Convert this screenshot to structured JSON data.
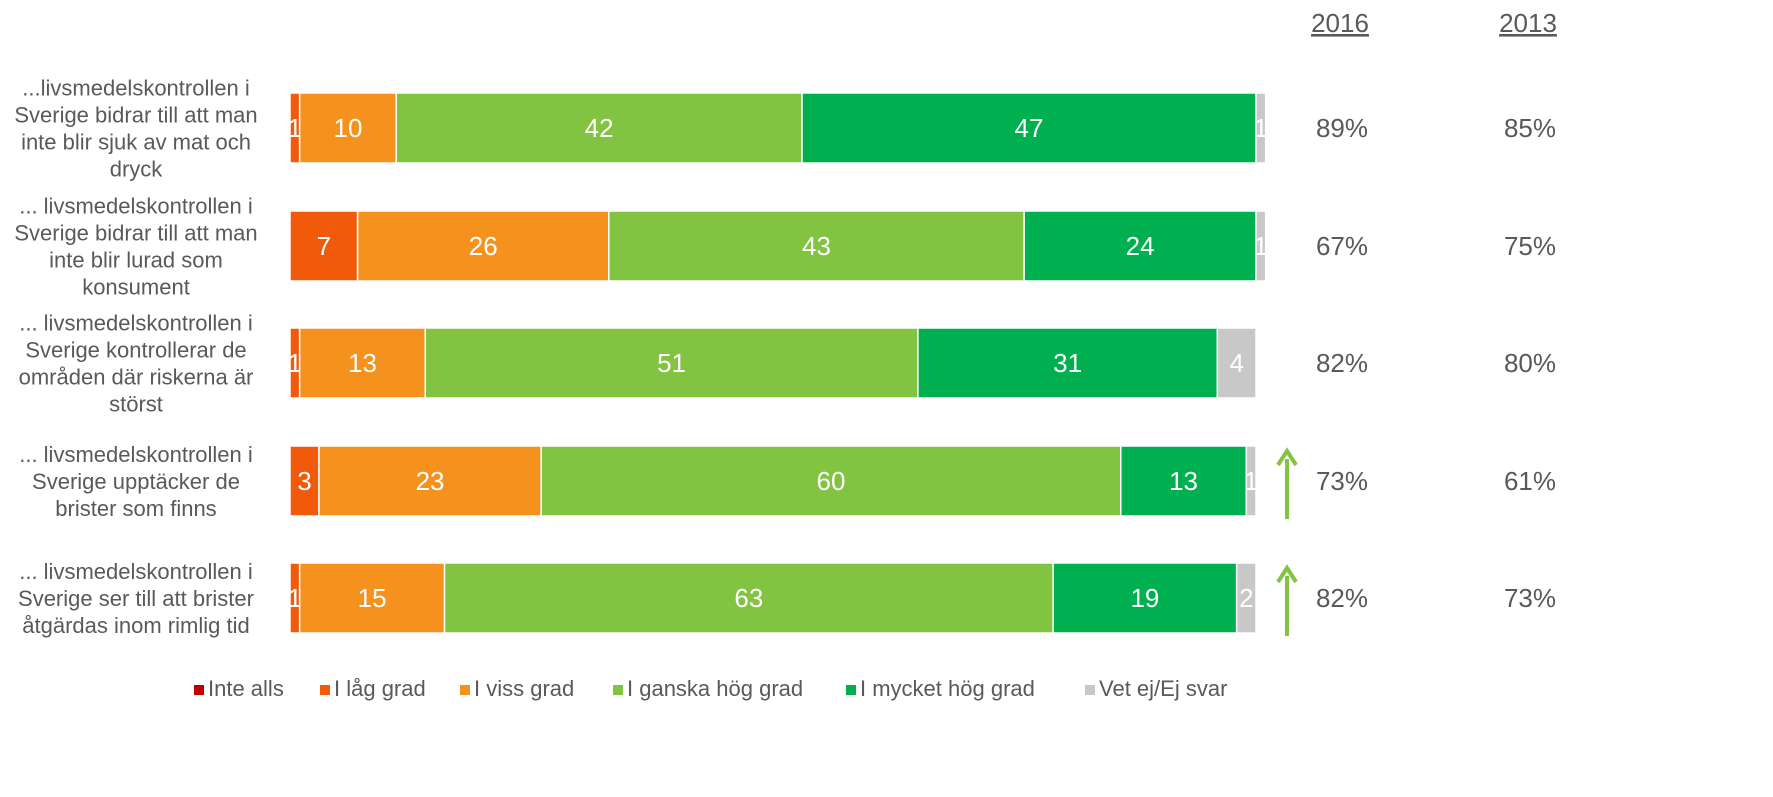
{
  "chart_data": {
    "type": "bar",
    "orientation": "horizontal",
    "stacked": true,
    "title": "",
    "xlabel": "",
    "ylabel": "",
    "xlim": [
      0,
      100
    ],
    "grid": false,
    "legend_position": "bottom",
    "categories": [
      [
        "...livsmedelskontrollen i",
        "Sverige bidrar till att man",
        "inte blir sjuk av mat och",
        "dryck"
      ],
      [
        "... livsmedelskontrollen i",
        "Sverige bidrar till att man",
        "inte blir lurad som",
        "konsument"
      ],
      [
        "... livsmedelskontrollen i",
        "Sverige kontrollerar de",
        "områden där riskerna är",
        "störst"
      ],
      [
        "... livsmedelskontrollen i",
        "Sverige upptäcker de",
        "brister som finns"
      ],
      [
        "... livsmedelskontrollen i",
        "Sverige ser till att brister",
        "åtgärdas inom rimlig tid"
      ]
    ],
    "series": [
      {
        "name": "Inte alls",
        "color": "#c00000",
        "values": [
          0,
          0,
          0,
          0,
          0
        ]
      },
      {
        "name": "I låg grad",
        "color": "#f05a0a",
        "values": [
          1,
          7,
          1,
          3,
          1
        ]
      },
      {
        "name": "I viss grad",
        "color": "#f5921e",
        "values": [
          10,
          26,
          13,
          23,
          15
        ]
      },
      {
        "name": "I ganska hög grad",
        "color": "#82c341",
        "values": [
          42,
          43,
          51,
          60,
          63
        ]
      },
      {
        "name": "I mycket hög grad",
        "color": "#00b050",
        "values": [
          47,
          24,
          31,
          13,
          19
        ]
      },
      {
        "name": "Vet ej/Ej svar",
        "color": "#c8c8c8",
        "values": [
          1,
          1,
          4,
          1,
          2
        ]
      }
    ],
    "segment_labels": [
      [
        "",
        "1",
        "10",
        "42",
        "47",
        "1"
      ],
      [
        "",
        "7",
        "26",
        "43",
        "24",
        "1"
      ],
      [
        "",
        "1",
        "13",
        "51",
        "31",
        "4"
      ],
      [
        "",
        "3",
        "23",
        "60",
        "13",
        "1"
      ],
      [
        "",
        "1",
        "15",
        "63",
        "19",
        "2"
      ]
    ],
    "comparison": {
      "headers": [
        "2016",
        "2013"
      ],
      "values_2016": [
        "89%",
        "67%",
        "82%",
        "73%",
        "82%"
      ],
      "values_2013": [
        "85%",
        "75%",
        "80%",
        "61%",
        "73%"
      ],
      "trend_up": [
        false,
        false,
        false,
        true,
        true
      ],
      "arrow_color": "#82c341"
    }
  }
}
